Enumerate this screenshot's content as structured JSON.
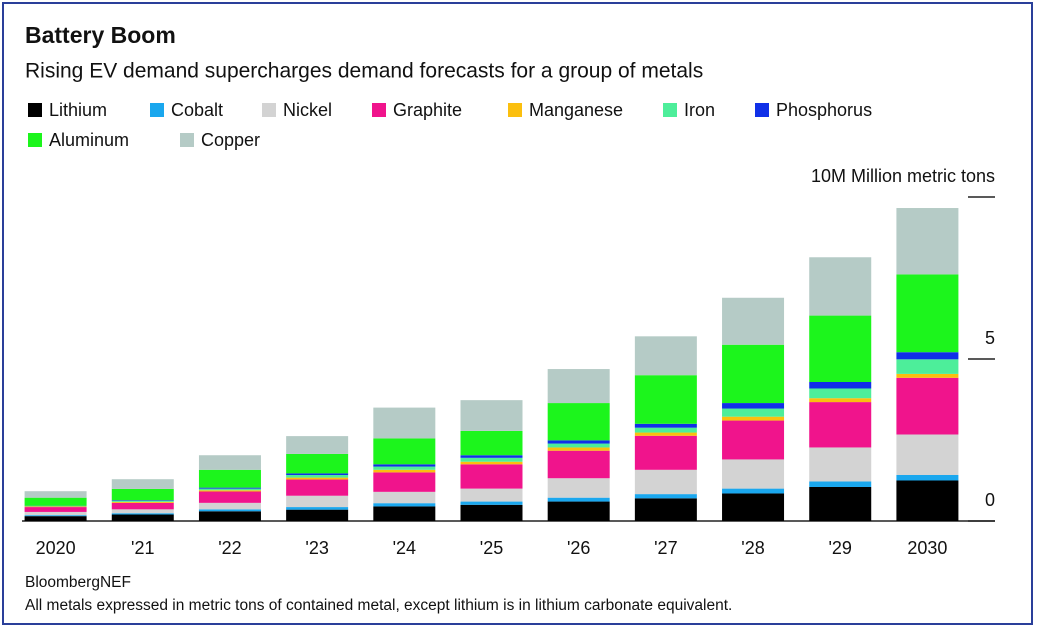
{
  "chart_data": {
    "type": "stacked_bar",
    "title": "Battery Boom",
    "subtitle": "Rising EV demand supercharges demand forecasts for a group of metals",
    "categories": [
      "2020",
      "'21",
      "'22",
      "'23",
      "'24",
      "'25",
      "'26",
      "'27",
      "'28",
      "'29",
      "2030"
    ],
    "series": [
      {
        "name": "Lithium",
        "color": "#000000",
        "values": [
          0.15,
          0.2,
          0.3,
          0.35,
          0.45,
          0.5,
          0.6,
          0.7,
          0.85,
          1.05,
          1.25
        ]
      },
      {
        "name": "Cobalt",
        "color": "#1aa7ee",
        "values": [
          0.03,
          0.04,
          0.06,
          0.08,
          0.1,
          0.1,
          0.12,
          0.13,
          0.15,
          0.17,
          0.17
        ]
      },
      {
        "name": "Nickel",
        "color": "#d3d3d3",
        "values": [
          0.1,
          0.12,
          0.2,
          0.35,
          0.35,
          0.4,
          0.6,
          0.75,
          0.9,
          1.05,
          1.25
        ]
      },
      {
        "name": "Graphite",
        "color": "#f0148c",
        "values": [
          0.15,
          0.2,
          0.35,
          0.5,
          0.6,
          0.75,
          0.85,
          1.05,
          1.2,
          1.4,
          1.75
        ]
      },
      {
        "name": "Manganese",
        "color": "#fbbf0e",
        "values": [
          0.02,
          0.03,
          0.04,
          0.06,
          0.08,
          0.08,
          0.1,
          0.1,
          0.12,
          0.12,
          0.12
        ]
      },
      {
        "name": "Iron",
        "color": "#4dee9a",
        "values": [
          0.01,
          0.03,
          0.05,
          0.08,
          0.1,
          0.12,
          0.12,
          0.15,
          0.25,
          0.3,
          0.45
        ]
      },
      {
        "name": "Phosphorus",
        "color": "#1030e8",
        "values": [
          0.01,
          0.02,
          0.03,
          0.05,
          0.07,
          0.08,
          0.1,
          0.12,
          0.17,
          0.2,
          0.22
        ]
      },
      {
        "name": "Aluminum",
        "color": "#1cf51c",
        "values": [
          0.25,
          0.35,
          0.55,
          0.6,
          0.8,
          0.75,
          1.15,
          1.5,
          1.8,
          2.05,
          2.4
        ]
      },
      {
        "name": "Copper",
        "color": "#b5cbc6",
        "values": [
          0.2,
          0.3,
          0.45,
          0.55,
          0.95,
          0.95,
          1.05,
          1.2,
          1.45,
          1.8,
          2.05
        ]
      }
    ],
    "ylim": [
      0,
      10
    ],
    "yticks": [
      0,
      5,
      {
        "value": 10,
        "label": "10M Million metric tons"
      }
    ],
    "source": "BloombergNEF",
    "note": "All metals expressed in metric tons of contained metal, except lithium is in lithium carbonate equivalent."
  }
}
